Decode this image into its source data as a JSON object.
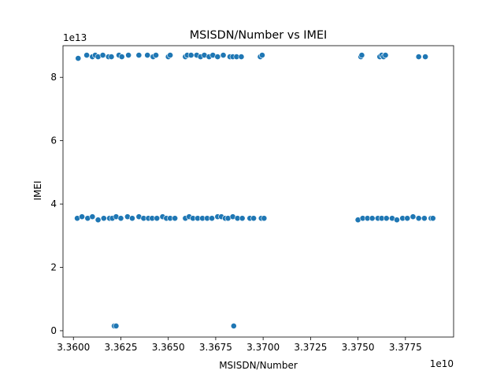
{
  "chart_data": {
    "type": "scatter",
    "title": "MSISDN/Number vs IMEI",
    "xlabel": "MSISDN/Number",
    "ylabel": "IMEI",
    "x_offset_text": "1e10",
    "y_offset_text": "1e13",
    "x_scale": 10000000000.0,
    "y_scale": 10000000000000.0,
    "xlim": [
      3.35945,
      3.38004
    ],
    "ylim": [
      -0.2,
      9.0
    ],
    "x_ticks": [
      3.36,
      3.3625,
      3.365,
      3.3675,
      3.37,
      3.3725,
      3.375,
      3.3775
    ],
    "x_tick_labels": [
      "3.3600",
      "3.3625",
      "3.3650",
      "3.3675",
      "3.3700",
      "3.3725",
      "3.3750",
      "3.3775"
    ],
    "y_ticks": [
      0,
      2,
      4,
      6,
      8
    ],
    "y_tick_labels": [
      "0",
      "2",
      "4",
      "6",
      "8"
    ],
    "grid": false,
    "legend": "none",
    "marker_color": "#1f77b4",
    "marker_edge_color": "#ffffff",
    "series": [
      {
        "x": [
          3.36025,
          3.3607,
          3.361,
          3.36115,
          3.3613,
          3.36155,
          3.36185,
          3.362,
          3.3624,
          3.36255,
          3.3629,
          3.36345,
          3.3639,
          3.3642,
          3.36435,
          3.365,
          3.3651,
          3.3659,
          3.366,
          3.3662,
          3.3665,
          3.3667,
          3.3669,
          3.36715,
          3.36735,
          3.3676,
          3.3679,
          3.36825,
          3.3684,
          3.3686,
          3.36885,
          3.36985,
          3.36995,
          3.37515,
          3.3752,
          3.37615,
          3.37625,
          3.37635,
          3.37645,
          3.3782,
          3.37855
        ],
        "y": [
          8.6,
          8.7,
          8.65,
          8.7,
          8.65,
          8.7,
          8.65,
          8.65,
          8.7,
          8.65,
          8.7,
          8.7,
          8.7,
          8.65,
          8.7,
          8.65,
          8.7,
          8.65,
          8.7,
          8.7,
          8.7,
          8.65,
          8.7,
          8.65,
          8.7,
          8.65,
          8.7,
          8.65,
          8.65,
          8.65,
          8.65,
          8.65,
          8.7,
          8.65,
          8.7,
          8.65,
          8.7,
          8.65,
          8.7,
          8.65,
          8.65
        ]
      },
      {
        "x": [
          3.3602,
          3.36045,
          3.36075,
          3.361,
          3.3613,
          3.3616,
          3.3619,
          3.36205,
          3.36225,
          3.3625,
          3.36285,
          3.3631,
          3.36345,
          3.3637,
          3.36395,
          3.36415,
          3.3644,
          3.3647,
          3.3649,
          3.3651,
          3.36535,
          3.3659,
          3.3661,
          3.3663,
          3.36655,
          3.3668,
          3.36705,
          3.3673,
          3.3676,
          3.3678,
          3.368,
          3.36815,
          3.3684,
          3.36865,
          3.3689,
          3.3693,
          3.3695,
          3.3699,
          3.37005,
          3.375,
          3.37525,
          3.3755,
          3.37575,
          3.37605,
          3.37625,
          3.3765,
          3.3768,
          3.37705,
          3.37735,
          3.3776,
          3.3779,
          3.3782,
          3.3785,
          3.37885,
          3.37895
        ],
        "y": [
          3.55,
          3.6,
          3.55,
          3.6,
          3.5,
          3.55,
          3.55,
          3.55,
          3.6,
          3.55,
          3.6,
          3.55,
          3.6,
          3.55,
          3.55,
          3.55,
          3.55,
          3.6,
          3.55,
          3.55,
          3.55,
          3.55,
          3.6,
          3.55,
          3.55,
          3.55,
          3.55,
          3.55,
          3.6,
          3.6,
          3.55,
          3.55,
          3.6,
          3.55,
          3.55,
          3.55,
          3.55,
          3.55,
          3.55,
          3.5,
          3.55,
          3.55,
          3.55,
          3.55,
          3.55,
          3.55,
          3.55,
          3.5,
          3.55,
          3.55,
          3.6,
          3.55,
          3.55,
          3.55,
          3.55
        ]
      },
      {
        "x": [
          3.36215,
          3.36225,
          3.36845
        ],
        "y": [
          0.15,
          0.15,
          0.15
        ]
      }
    ]
  }
}
